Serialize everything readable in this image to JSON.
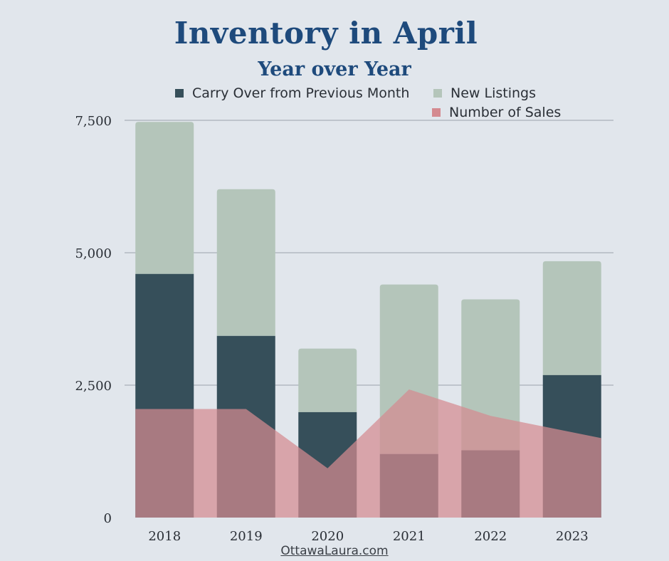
{
  "chart_data": {
    "type": "bar",
    "title": "Inventory in April",
    "subtitle": "Year over Year",
    "categories": [
      "2018",
      "2019",
      "2020",
      "2021",
      "2022",
      "2023"
    ],
    "series": [
      {
        "name": "Carry Over from Previous Month",
        "kind": "bar",
        "stack": "inventory",
        "color": "#364f5a",
        "values": [
          4600,
          3430,
          1990,
          1200,
          1270,
          2690
        ]
      },
      {
        "name": "New Listings",
        "kind": "bar",
        "stack": "inventory",
        "color": "#b4c5ba",
        "values": [
          2870,
          2770,
          1200,
          3200,
          2850,
          2150
        ]
      },
      {
        "name": "Number of Sales",
        "kind": "area",
        "color": "#d48a90",
        "values": [
          2050,
          2050,
          930,
          2420,
          1920,
          1500
        ]
      }
    ],
    "y_ticks": [
      "0",
      "2,500",
      "5,000",
      "7,500"
    ],
    "ylim": [
      0,
      7500
    ],
    "grid": true,
    "legend_position": "top"
  },
  "source_label": "OttawaLaura.com"
}
